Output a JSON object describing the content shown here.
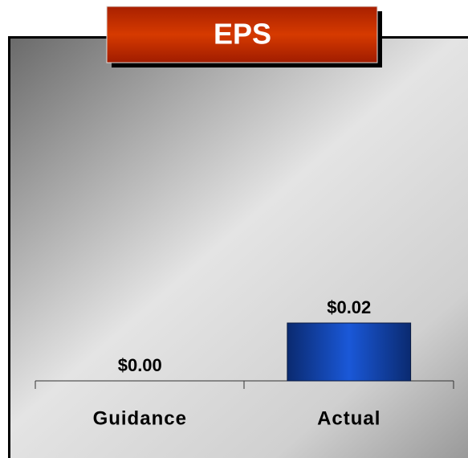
{
  "chart_data": {
    "type": "bar",
    "title": "EPS",
    "categories": [
      "Guidance",
      "Actual"
    ],
    "values": [
      0,
      0.02
    ],
    "value_labels": [
      "$0.00",
      "$0.02"
    ],
    "color": "#1040b0",
    "ylim": [
      0,
      0.1
    ]
  }
}
